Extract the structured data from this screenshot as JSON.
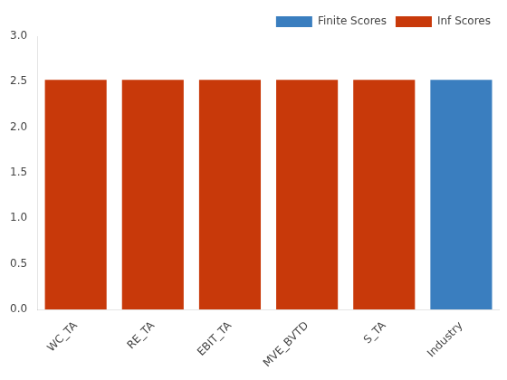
{
  "chart_data": {
    "type": "bar",
    "categories": [
      "WC_TA",
      "RE_TA",
      "EBIT_TA",
      "MVE_BVTD",
      "S_TA",
      "Industry"
    ],
    "series": [
      {
        "name": "Finite Scores",
        "color": "#3a7ebf",
        "values": [
          0,
          0,
          0,
          0,
          0,
          2.52
        ]
      },
      {
        "name": "Inf Scores",
        "color": "#c8390a",
        "values": [
          2.52,
          2.52,
          2.52,
          2.52,
          2.52,
          0
        ]
      }
    ],
    "ylim": [
      0,
      3
    ],
    "yticks": [
      {
        "value": 0,
        "label": "0.0"
      },
      0.5,
      {
        "value": 1,
        "label": "1.0"
      },
      1.5,
      {
        "value": 2,
        "label": "2.0"
      },
      2.5,
      {
        "value": 3,
        "label": "3.0"
      }
    ],
    "grid": false,
    "legend": "upper right"
  }
}
